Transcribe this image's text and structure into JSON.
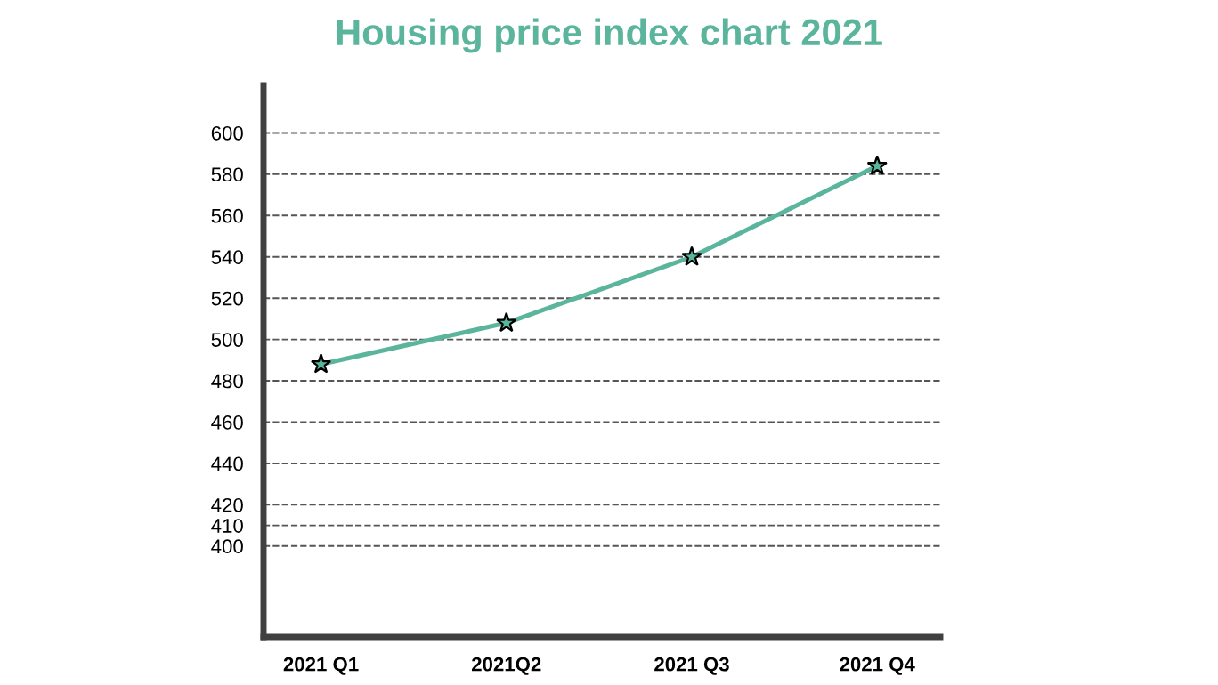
{
  "chart_data": {
    "type": "line",
    "title": "Housing price index chart 2021",
    "categories": [
      "2021 Q1",
      "2021Q2",
      "2021 Q3",
      "2021 Q4"
    ],
    "series": [
      {
        "color": "#5bb59c",
        "values": [
          488,
          508,
          540,
          584
        ]
      }
    ],
    "marker": "star",
    "grid": "y",
    "legend": false,
    "ylim": [
      356,
      623
    ],
    "yticks": [
      400,
      410,
      420,
      440,
      460,
      480,
      500,
      520,
      540,
      560,
      580,
      600
    ]
  }
}
